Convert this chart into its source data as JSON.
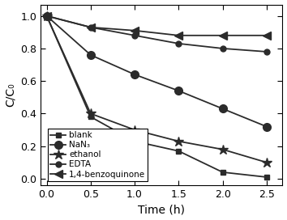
{
  "x": [
    0.0,
    0.5,
    1.0,
    1.5,
    2.0,
    2.5
  ],
  "series": [
    {
      "label": "blank",
      "marker": "s",
      "y": [
        1.0,
        0.38,
        0.23,
        0.17,
        0.04,
        0.01
      ]
    },
    {
      "label": "NaN₃",
      "marker": "o",
      "y": [
        1.0,
        0.76,
        0.64,
        0.54,
        0.43,
        0.32
      ]
    },
    {
      "label": "ethanol",
      "marker": "*",
      "y": [
        1.0,
        0.4,
        0.3,
        0.23,
        0.18,
        0.1
      ]
    },
    {
      "label": "EDTA",
      "marker": "o",
      "y": [
        1.0,
        0.93,
        0.88,
        0.83,
        0.8,
        0.78
      ]
    },
    {
      "label": "1,4-benzoquinone",
      "marker": "<",
      "y": [
        1.0,
        0.93,
        0.91,
        0.88,
        0.88,
        0.88
      ]
    }
  ],
  "xlabel": "Time (h)",
  "ylabel": "C/C₀",
  "xlim": [
    -0.07,
    2.68
  ],
  "ylim": [
    -0.04,
    1.07
  ],
  "xticks": [
    0.0,
    0.5,
    1.0,
    1.5,
    2.0,
    2.5
  ],
  "yticks": [
    0.0,
    0.2,
    0.4,
    0.6,
    0.8,
    1.0
  ],
  "line_color": "#2b2b2b",
  "markersize_s": 5,
  "markersize_o_nan3": 7,
  "markersize_star": 9,
  "markersize_o_edta": 5,
  "markersize_arrow": 7,
  "linewidth": 1.3,
  "legend_fontsize": 7.5,
  "axis_fontsize": 10,
  "tick_fontsize": 9
}
